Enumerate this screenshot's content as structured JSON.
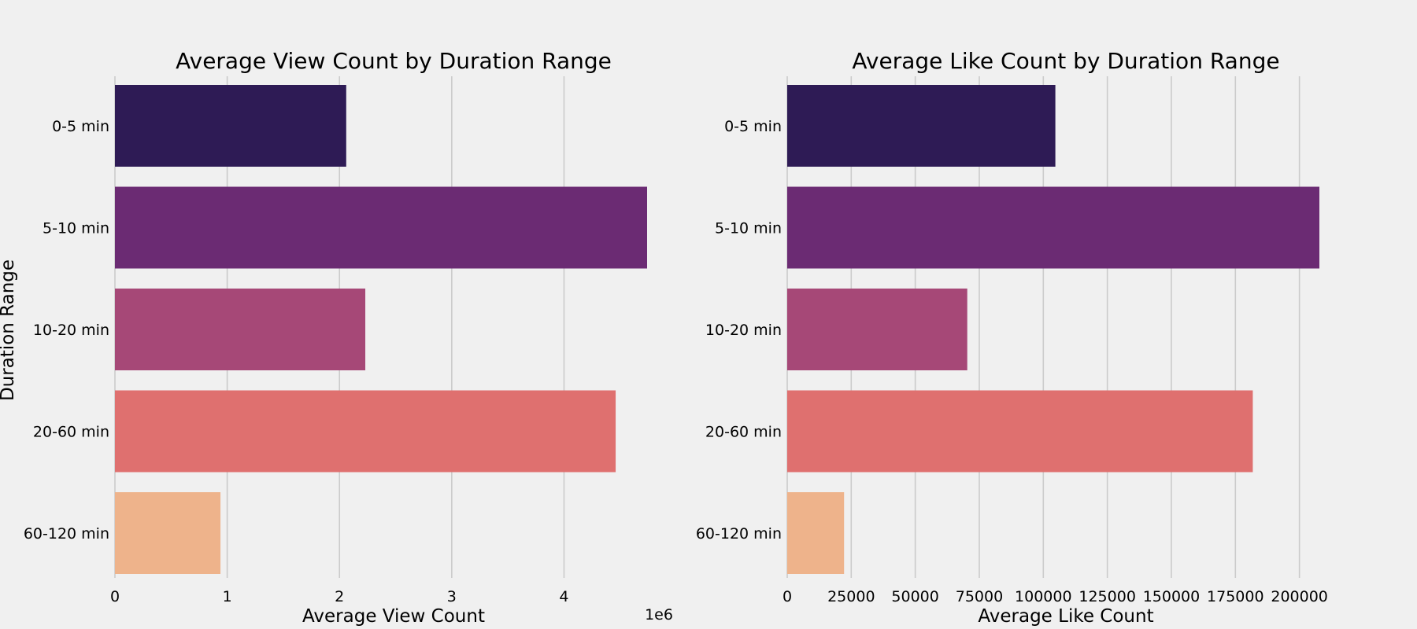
{
  "chart_data": [
    {
      "type": "bar",
      "orientation": "horizontal",
      "title": "Average View Count by Duration Range",
      "xlabel": "Average View Count",
      "ylabel": "Duration Range",
      "x_offset_label": "1e6",
      "categories": [
        "0-5 min",
        "5-10 min",
        "10-20 min",
        "20-60 min",
        "60-120 min"
      ],
      "values": [
        2060000,
        4740000,
        2230000,
        4460000,
        940000
      ],
      "xticks": [
        0,
        1,
        2,
        3,
        4
      ],
      "xtick_labels": [
        "0",
        "1",
        "2",
        "3",
        "4"
      ],
      "tick_scale": 1000000,
      "xlim": [
        0,
        4740000
      ],
      "grid": true,
      "colors": [
        "#2e1b55",
        "#6b2b73",
        "#a64877",
        "#df706f",
        "#eeb38b"
      ]
    },
    {
      "type": "bar",
      "orientation": "horizontal",
      "title": "Average Like Count by Duration Range",
      "xlabel": "Average Like Count",
      "ylabel": "",
      "categories": [
        "0-5 min",
        "5-10 min",
        "10-20 min",
        "20-60 min",
        "60-120 min"
      ],
      "values": [
        104700,
        207800,
        70300,
        181800,
        22200
      ],
      "xticks": [
        0,
        25000,
        50000,
        75000,
        100000,
        125000,
        150000,
        175000,
        200000
      ],
      "xtick_labels": [
        "0",
        "25000",
        "50000",
        "75000",
        "100000",
        "125000",
        "150000",
        "175000",
        "200000"
      ],
      "tick_scale": 1,
      "xlim": [
        0,
        207800
      ],
      "grid": true,
      "colors": [
        "#2e1b55",
        "#6b2b73",
        "#a64877",
        "#df706f",
        "#eeb38b"
      ]
    }
  ]
}
